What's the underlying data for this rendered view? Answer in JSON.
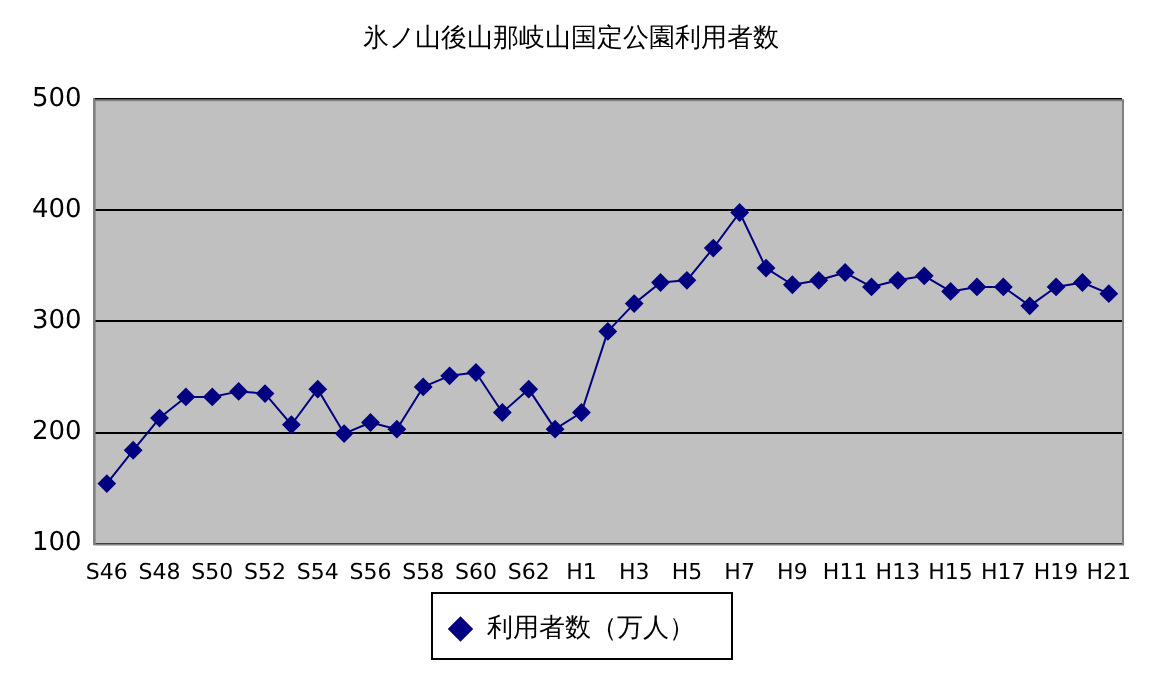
{
  "chart_data": {
    "type": "line",
    "title": "氷ノ山後山那岐山国定公園利用者数",
    "categories": [
      "S46",
      null,
      "S48",
      null,
      "S50",
      null,
      "S52",
      null,
      "S54",
      null,
      "S56",
      null,
      "S58",
      null,
      "S60",
      null,
      "S62",
      null,
      "H1",
      null,
      "H3",
      null,
      "H5",
      null,
      "H7",
      null,
      "H9",
      null,
      "H11",
      null,
      "H13",
      null,
      "H15",
      null,
      "H17",
      null,
      "H19",
      null,
      "H21"
    ],
    "series": [
      {
        "name": "利用者数（万人）",
        "color": "#000080",
        "values": [
          154,
          184,
          213,
          232,
          232,
          237,
          235,
          207,
          239,
          199,
          209,
          203,
          241,
          251,
          254,
          218,
          239,
          203,
          218,
          291,
          316,
          335,
          337,
          366,
          398,
          348,
          333,
          337,
          344,
          331,
          337,
          341,
          327,
          331,
          331,
          314,
          331,
          335,
          325
        ]
      }
    ],
    "ylim": [
      100,
      500
    ],
    "yticks": [
      100,
      200,
      300,
      400,
      500
    ],
    "grid": "y",
    "legend": "bottom",
    "marker": "diamond",
    "line_style": "solid"
  }
}
